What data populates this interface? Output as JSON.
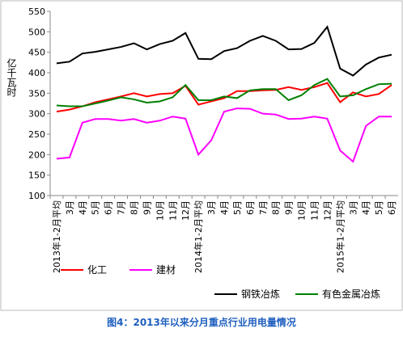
{
  "chart_data": {
    "type": "line",
    "caption": "图4：2013年以来分月重点行业用电量情况",
    "y_label": "亿千瓦时",
    "categories": [
      "2013年1-2月平均",
      "3月",
      "4月",
      "5月",
      "6月",
      "7月",
      "8月",
      "9月",
      "10月",
      "11月",
      "12月",
      "2014年1-2月平均",
      "3月",
      "4月",
      "5月",
      "6月",
      "7月",
      "8月",
      "9月",
      "10月",
      "11月",
      "12月",
      "2015年1-2月平均",
      "3月",
      "4月",
      "5月",
      "6月"
    ],
    "series": [
      {
        "name": "化工",
        "color": "#ff0000",
        "values": [
          305,
          310,
          318,
          328,
          335,
          342,
          350,
          342,
          348,
          350,
          368,
          322,
          330,
          338,
          355,
          355,
          357,
          358,
          365,
          358,
          365,
          375,
          328,
          352,
          342,
          348,
          370
        ]
      },
      {
        "name": "建材",
        "color": "#ff00ff",
        "values": [
          190,
          193,
          278,
          287,
          287,
          283,
          287,
          278,
          283,
          293,
          288,
          200,
          235,
          305,
          313,
          312,
          300,
          298,
          287,
          288,
          293,
          288,
          210,
          183,
          270,
          293,
          293
        ]
      },
      {
        "name": "钢铁冶炼",
        "color": "#000000",
        "values": [
          423,
          427,
          447,
          451,
          457,
          463,
          472,
          457,
          470,
          478,
          497,
          434,
          433,
          453,
          460,
          478,
          490,
          478,
          457,
          458,
          473,
          512,
          410,
          393,
          420,
          437,
          444
        ]
      },
      {
        "name": "有色金属冶炼",
        "color": "#008000",
        "values": [
          320,
          318,
          318,
          325,
          332,
          340,
          335,
          327,
          330,
          340,
          370,
          333,
          333,
          342,
          338,
          357,
          360,
          360,
          333,
          345,
          370,
          385,
          342,
          345,
          360,
          372,
          373
        ]
      }
    ],
    "ylim": [
      100,
      550
    ],
    "yticks": [
      100,
      150,
      200,
      250,
      300,
      350,
      400,
      450,
      500,
      550
    ]
  }
}
